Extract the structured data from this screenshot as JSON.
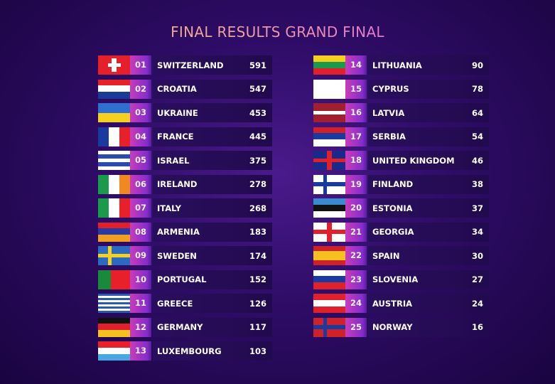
{
  "title": "FINAL RESULTS GRAND FINAL",
  "results": [
    {
      "rank": "01",
      "country": "SWITZERLAND",
      "points": "591",
      "flag": {
        "type": "cross-center",
        "colors": [
          "#e5202a",
          "#ffffff"
        ]
      }
    },
    {
      "rank": "02",
      "country": "CROATIA",
      "points": "547",
      "flag": {
        "type": "h",
        "colors": [
          "#e8202a",
          "#ffffff",
          "#1a3a9a"
        ]
      }
    },
    {
      "rank": "03",
      "country": "UKRAINE",
      "points": "453",
      "flag": {
        "type": "h",
        "colors": [
          "#2f6fd0",
          "#f5d020"
        ]
      }
    },
    {
      "rank": "04",
      "country": "FRANCE",
      "points": "445",
      "flag": {
        "type": "v",
        "colors": [
          "#1a3aa0",
          "#ffffff",
          "#e8202a"
        ]
      }
    },
    {
      "rank": "05",
      "country": "ISRAEL",
      "points": "375",
      "flag": {
        "type": "h",
        "colors": [
          "#ffffff",
          "#2a4ab0",
          "#ffffff",
          "#2a4ab0",
          "#ffffff"
        ]
      }
    },
    {
      "rank": "06",
      "country": "IRELAND",
      "points": "278",
      "flag": {
        "type": "v",
        "colors": [
          "#1a9a4a",
          "#ffffff",
          "#f08a20"
        ]
      }
    },
    {
      "rank": "07",
      "country": "ITALY",
      "points": "268",
      "flag": {
        "type": "v",
        "colors": [
          "#1a9a4a",
          "#ffffff",
          "#e8202a"
        ]
      }
    },
    {
      "rank": "08",
      "country": "ARMENIA",
      "points": "183",
      "flag": {
        "type": "h",
        "colors": [
          "#e0202a",
          "#2a3aa0",
          "#f0a020"
        ]
      }
    },
    {
      "rank": "09",
      "country": "SWEDEN",
      "points": "174",
      "flag": {
        "type": "nordic",
        "colors": [
          "#2a6ac0",
          "#f5d020"
        ]
      }
    },
    {
      "rank": "10",
      "country": "PORTUGAL",
      "points": "152",
      "flag": {
        "type": "v2",
        "colors": [
          "#1a8a3a",
          "#e8202a"
        ]
      }
    },
    {
      "rank": "11",
      "country": "GREECE",
      "points": "126",
      "flag": {
        "type": "h",
        "colors": [
          "#2a5ab0",
          "#ffffff",
          "#2a5ab0",
          "#ffffff",
          "#2a5ab0",
          "#ffffff",
          "#2a5ab0",
          "#ffffff",
          "#2a5ab0"
        ]
      }
    },
    {
      "rank": "12",
      "country": "GERMANY",
      "points": "117",
      "flag": {
        "type": "h",
        "colors": [
          "#111111",
          "#e0202a",
          "#f5c020"
        ]
      }
    },
    {
      "rank": "13",
      "country": "LUXEMBOURG",
      "points": "103",
      "flag": {
        "type": "h",
        "colors": [
          "#e8202a",
          "#ffffff",
          "#4aa8e0"
        ]
      }
    },
    {
      "rank": "14",
      "country": "LITHUANIA",
      "points": "90",
      "flag": {
        "type": "h",
        "colors": [
          "#f5d020",
          "#1a9a4a",
          "#e0202a"
        ]
      }
    },
    {
      "rank": "15",
      "country": "CYPRUS",
      "points": "78",
      "flag": {
        "type": "h",
        "colors": [
          "#ffffff"
        ]
      }
    },
    {
      "rank": "16",
      "country": "LATVIA",
      "points": "64",
      "flag": {
        "type": "h",
        "colors": [
          "#a02030",
          "#a02030",
          "#ffffff",
          "#a02030",
          "#a02030"
        ]
      }
    },
    {
      "rank": "17",
      "country": "SERBIA",
      "points": "54",
      "flag": {
        "type": "h",
        "colors": [
          "#d0202a",
          "#1a3aa0",
          "#ffffff"
        ]
      }
    },
    {
      "rank": "18",
      "country": "UNITED KINGDOM",
      "points": "46",
      "flag": {
        "type": "cross-center",
        "colors": [
          "#1a2a8a",
          "#e0202a"
        ]
      }
    },
    {
      "rank": "19",
      "country": "FINLAND",
      "points": "38",
      "flag": {
        "type": "nordic",
        "colors": [
          "#ffffff",
          "#1a3aa0"
        ]
      }
    },
    {
      "rank": "20",
      "country": "ESTONIA",
      "points": "37",
      "flag": {
        "type": "h",
        "colors": [
          "#3a8ad0",
          "#111111",
          "#ffffff"
        ]
      }
    },
    {
      "rank": "21",
      "country": "GEORGIA",
      "points": "34",
      "flag": {
        "type": "cross-center",
        "colors": [
          "#ffffff",
          "#e0202a"
        ]
      }
    },
    {
      "rank": "22",
      "country": "SPAIN",
      "points": "30",
      "flag": {
        "type": "h",
        "colors": [
          "#d0202a",
          "#f5c020",
          "#f5c020",
          "#d0202a"
        ]
      }
    },
    {
      "rank": "23",
      "country": "SLOVENIA",
      "points": "27",
      "flag": {
        "type": "h",
        "colors": [
          "#ffffff",
          "#1a3aa0",
          "#e0202a"
        ]
      }
    },
    {
      "rank": "24",
      "country": "AUSTRIA",
      "points": "24",
      "flag": {
        "type": "h",
        "colors": [
          "#e0202a",
          "#ffffff",
          "#e0202a"
        ]
      }
    },
    {
      "rank": "25",
      "country": "NORWAY",
      "points": "16",
      "flag": {
        "type": "nordic",
        "colors": [
          "#d0202a",
          "#1a3aa0"
        ]
      }
    }
  ]
}
